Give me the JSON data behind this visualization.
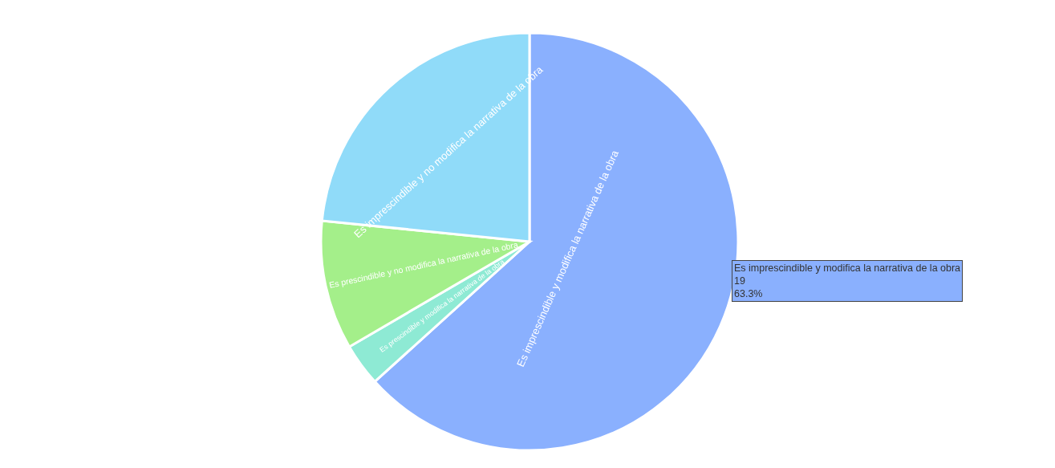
{
  "chart_data": {
    "type": "pie",
    "categories": [
      "Es imprescindible y modifica la narrativa de la obra",
      "Es prescindible y modifica la narrativa de la obra",
      "Es prescindible y no modifica la narrativa de la obra",
      "Es imprescindible y no modifica la narrativa de la obra"
    ],
    "values": [
      63.3,
      3.3,
      10,
      23.4
    ],
    "colors": [
      "#8ab0fe",
      "#8eead4",
      "#a4ef8a",
      "#90dbf9"
    ],
    "annotations": [
      "Es imprescindible y modifica la narrativa de la obra",
      "19",
      "63.3%"
    ],
    "legend": false
  }
}
